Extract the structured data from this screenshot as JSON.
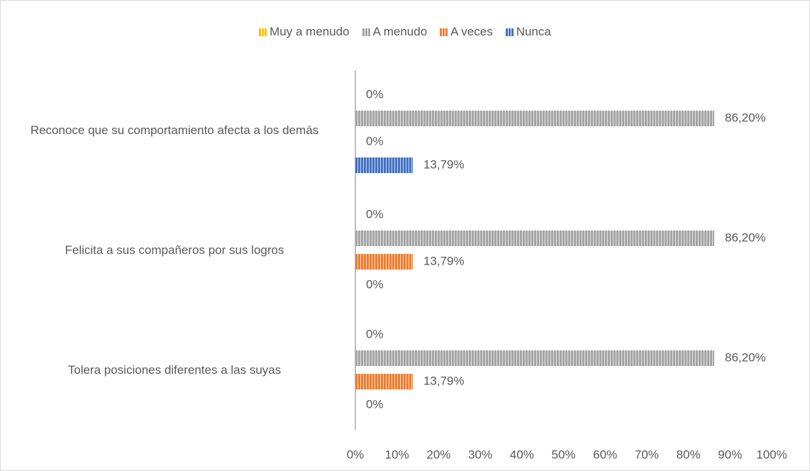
{
  "chart_data": {
    "type": "bar",
    "orientation": "horizontal",
    "categories": [
      "Reconoce que su comportamiento afecta a los demás",
      "Felicita a sus compañeros por sus logros",
      "Tolera posiciones diferentes a las suyas"
    ],
    "series": [
      {
        "name": "Muy a menudo",
        "color": "#FFC000",
        "values": [
          0,
          0,
          0
        ],
        "value_labels": [
          "0%",
          "0%",
          "0%"
        ]
      },
      {
        "name": "A menudo",
        "color": "#A5A5A5",
        "values": [
          86.2,
          86.2,
          86.2
        ],
        "value_labels": [
          "86,20%",
          "86,20%",
          "86,20%"
        ]
      },
      {
        "name": "A veces",
        "color": "#ED7D31",
        "values": [
          0,
          13.79,
          13.79
        ],
        "value_labels": [
          "0%",
          "13,79%",
          "13,79%"
        ]
      },
      {
        "name": "Nunca",
        "color": "#4472C4",
        "values": [
          13.79,
          0,
          0
        ],
        "value_labels": [
          "13,79%",
          "0%",
          "0%"
        ]
      }
    ],
    "xlim": [
      0,
      100
    ],
    "xticks": [
      {
        "value": 0,
        "label": "0%"
      },
      {
        "value": 10,
        "label": "10%"
      },
      {
        "value": 20,
        "label": "20%"
      },
      {
        "value": 30,
        "label": "30%"
      },
      {
        "value": 40,
        "label": "40%"
      },
      {
        "value": 50,
        "label": "50%"
      },
      {
        "value": 60,
        "label": "60%"
      },
      {
        "value": 70,
        "label": "70%"
      },
      {
        "value": 80,
        "label": "80%"
      },
      {
        "value": 90,
        "label": "90%"
      },
      {
        "value": 100,
        "label": "100%"
      }
    ],
    "legend": "top",
    "grid": false
  }
}
